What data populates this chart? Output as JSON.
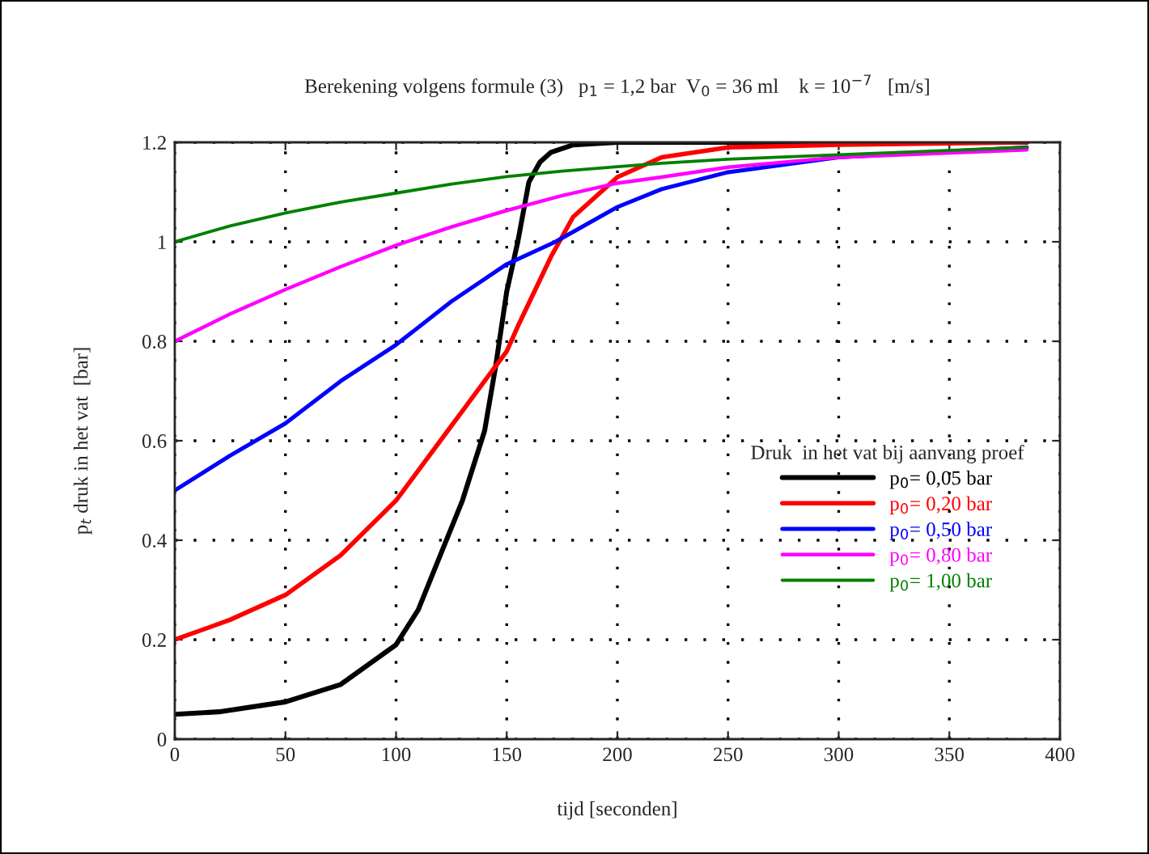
{
  "chart_data": {
    "type": "line",
    "title": "Berekening volgens formule (3)   p$_{1}$ = 1,2 bar  V$_{0}$ = 36 ml    k = 10$^{−7}$   [m/s]",
    "xlabel": "tijd [seconden]",
    "ylabel": "p$_{t}$ druk in het vat  [bar]",
    "legend_title": "Druk  in het vat bij aanvang proef",
    "series": [
      {
        "name": "p$_{0}$= 0,05 bar",
        "color": "#000000",
        "x": [
          0,
          20,
          50,
          75,
          100,
          110,
          120,
          130,
          140,
          145,
          150,
          155,
          160,
          165,
          170,
          180,
          200,
          250,
          300,
          385
        ],
        "values": [
          0.05,
          0.055,
          0.075,
          0.11,
          0.19,
          0.26,
          0.37,
          0.48,
          0.62,
          0.75,
          0.9,
          1.0,
          1.12,
          1.16,
          1.18,
          1.195,
          1.2,
          1.2,
          1.2,
          1.2
        ]
      },
      {
        "name": "p$_{0}$= 0,20 bar",
        "color": "#ff0000",
        "x": [
          0,
          25,
          50,
          75,
          100,
          120,
          130,
          140,
          145,
          150,
          155,
          170,
          180,
          200,
          220,
          250,
          300,
          385
        ],
        "values": [
          0.2,
          0.24,
          0.29,
          0.37,
          0.48,
          0.6,
          0.66,
          0.72,
          0.75,
          0.78,
          0.83,
          0.97,
          1.05,
          1.13,
          1.17,
          1.19,
          1.195,
          1.2
        ]
      },
      {
        "name": "p$_{0}$= 0,50 bar",
        "color": "#0000ff",
        "x": [
          0,
          25,
          50,
          75,
          100,
          125,
          150,
          172,
          200,
          220,
          250,
          300,
          385
        ],
        "values": [
          0.5,
          0.57,
          0.635,
          0.72,
          0.793,
          0.88,
          0.955,
          1.0,
          1.07,
          1.106,
          1.14,
          1.17,
          1.19
        ]
      },
      {
        "name": "p$_{0}$= 0,80 bar",
        "color": "#ff00ff",
        "x": [
          0,
          25,
          50,
          75,
          100,
          125,
          150,
          175,
          200,
          220,
          250,
          300,
          385
        ],
        "values": [
          0.8,
          0.855,
          0.904,
          0.95,
          0.993,
          1.03,
          1.063,
          1.093,
          1.118,
          1.13,
          1.15,
          1.17,
          1.185
        ]
      },
      {
        "name": "p$_{0}$= 1,00 bar",
        "color": "#008000",
        "x": [
          0,
          25,
          50,
          75,
          100,
          125,
          150,
          175,
          200,
          220,
          250,
          300,
          385
        ],
        "values": [
          1.0,
          1.032,
          1.058,
          1.08,
          1.098,
          1.116,
          1.131,
          1.142,
          1.151,
          1.158,
          1.166,
          1.175,
          1.19
        ]
      }
    ],
    "xlim": [
      0,
      400
    ],
    "xticks": [
      0,
      50,
      100,
      150,
      200,
      250,
      300,
      350,
      400
    ],
    "ylim": [
      0,
      1.2
    ],
    "yticks": [
      0,
      0.2,
      0.4,
      0.6,
      0.8,
      1,
      1.2
    ],
    "grid": true,
    "legend": "center right",
    "line_style": "solid",
    "marker": "none"
  }
}
